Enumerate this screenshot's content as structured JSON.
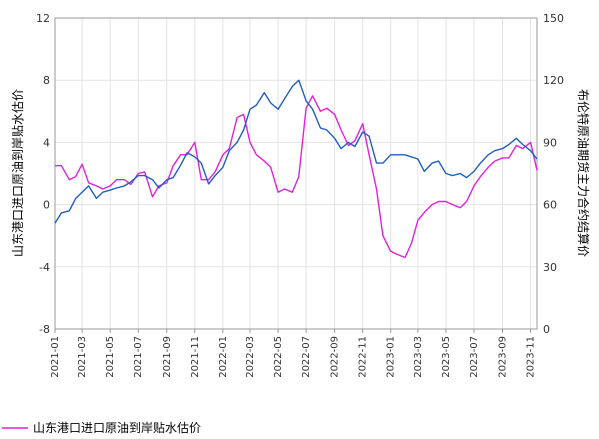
{
  "chart_data": {
    "type": "line",
    "title": "",
    "xlabel": "",
    "ylabel": "山东港口进口原油到岸贴水估价",
    "y2label": "布伦特原油期货主力合约结算价",
    "xlim": [
      "2021-01",
      "2023-11"
    ],
    "ylim": [
      -8,
      12
    ],
    "y2lim": [
      0,
      150
    ],
    "x_ticks": [
      "2021-01",
      "2021-03",
      "2021-05",
      "2021-07",
      "2021-09",
      "2021-11",
      "2022-01",
      "2022-03",
      "2022-05",
      "2022-07",
      "2022-09",
      "2022-11",
      "2023-01",
      "2023-03",
      "2023-05",
      "2023-07",
      "2023-09",
      "2023-11"
    ],
    "y_ticks": [
      "-8",
      "-4",
      "0",
      "4",
      "8",
      "12"
    ],
    "y2_ticks": [
      "0",
      "30",
      "60",
      "90",
      "120",
      "150"
    ],
    "grid": true,
    "legend_position": "bottom-left",
    "colors": {
      "discount": "#e020e0",
      "brent": "#1f5fbf"
    },
    "series": [
      {
        "name": "山东港口进口原油到岸贴水估价",
        "axis": "left",
        "x": [
          "2021-01-01",
          "2021-01-15",
          "2021-02-01",
          "2021-02-15",
          "2021-03-01",
          "2021-03-15",
          "2021-04-01",
          "2021-04-15",
          "2021-05-01",
          "2021-05-15",
          "2021-06-01",
          "2021-06-15",
          "2021-07-01",
          "2021-07-15",
          "2021-08-01",
          "2021-08-15",
          "2021-09-01",
          "2021-09-15",
          "2021-10-01",
          "2021-10-15",
          "2021-11-01",
          "2021-11-15",
          "2021-12-01",
          "2021-12-15",
          "2022-01-01",
          "2022-01-15",
          "2022-02-01",
          "2022-02-15",
          "2022-03-01",
          "2022-03-15",
          "2022-04-01",
          "2022-04-15",
          "2022-05-01",
          "2022-05-15",
          "2022-06-01",
          "2022-06-15",
          "2022-07-01",
          "2022-07-15",
          "2022-08-01",
          "2022-08-15",
          "2022-09-01",
          "2022-09-15",
          "2022-10-01",
          "2022-10-15",
          "2022-11-01",
          "2022-11-15",
          "2022-12-01",
          "2022-12-15",
          "2023-01-01",
          "2023-01-15",
          "2023-02-01",
          "2023-02-15",
          "2023-03-01",
          "2023-03-15",
          "2023-04-01",
          "2023-04-15",
          "2023-05-01",
          "2023-05-15",
          "2023-06-01",
          "2023-06-15",
          "2023-07-01",
          "2023-07-15",
          "2023-08-01",
          "2023-08-15",
          "2023-09-01",
          "2023-09-15",
          "2023-10-01",
          "2023-10-15",
          "2023-11-01",
          "2023-11-15"
        ],
        "values": [
          2.5,
          2.5,
          1.6,
          1.8,
          2.6,
          1.4,
          1.2,
          1.0,
          1.2,
          1.6,
          1.6,
          1.3,
          2.0,
          2.1,
          0.5,
          1.2,
          1.4,
          2.5,
          3.2,
          3.2,
          4.0,
          1.6,
          1.6,
          2.1,
          3.2,
          3.6,
          5.6,
          5.8,
          4.0,
          3.2,
          2.8,
          2.4,
          0.8,
          1.0,
          0.8,
          1.8,
          6.2,
          7.0,
          6.0,
          6.2,
          5.8,
          4.8,
          3.8,
          4.1,
          5.2,
          3.2,
          1.0,
          -2.0,
          -3.0,
          -3.2,
          -3.4,
          -2.5,
          -1.0,
          -0.5,
          0.0,
          0.2,
          0.2,
          0.0,
          -0.2,
          0.2,
          1.2,
          1.8,
          2.4,
          2.8,
          3.0,
          3.0,
          3.8,
          3.6,
          4.0,
          2.2
        ]
      },
      {
        "name": "布伦特原油期货主力合约结算价",
        "axis": "right",
        "x": [
          "2021-01-01",
          "2021-01-15",
          "2021-02-01",
          "2021-02-15",
          "2021-03-01",
          "2021-03-15",
          "2021-04-01",
          "2021-04-15",
          "2021-05-01",
          "2021-05-15",
          "2021-06-01",
          "2021-06-15",
          "2021-07-01",
          "2021-07-15",
          "2021-08-01",
          "2021-08-15",
          "2021-09-01",
          "2021-09-15",
          "2021-10-01",
          "2021-10-15",
          "2021-11-01",
          "2021-11-15",
          "2021-12-01",
          "2021-12-15",
          "2022-01-01",
          "2022-01-15",
          "2022-02-01",
          "2022-02-15",
          "2022-03-01",
          "2022-03-15",
          "2022-04-01",
          "2022-04-15",
          "2022-05-01",
          "2022-05-15",
          "2022-06-01",
          "2022-06-15",
          "2022-07-01",
          "2022-07-15",
          "2022-08-01",
          "2022-08-15",
          "2022-09-01",
          "2022-09-15",
          "2022-10-01",
          "2022-10-15",
          "2022-11-01",
          "2022-11-15",
          "2022-12-01",
          "2022-12-15",
          "2023-01-01",
          "2023-01-15",
          "2023-02-01",
          "2023-02-15",
          "2023-03-01",
          "2023-03-15",
          "2023-04-01",
          "2023-04-15",
          "2023-05-01",
          "2023-05-15",
          "2023-06-01",
          "2023-06-15",
          "2023-07-01",
          "2023-07-15",
          "2023-08-01",
          "2023-08-15",
          "2023-09-01",
          "2023-09-15",
          "2023-10-01",
          "2023-10-15",
          "2023-11-01",
          "2023-11-15"
        ],
        "values": [
          51,
          56,
          57,
          63,
          66,
          69,
          63,
          66,
          67,
          68,
          69,
          71,
          74,
          74,
          72,
          68,
          72,
          73,
          79,
          85,
          83,
          80,
          70,
          74,
          78,
          86,
          90,
          96,
          106,
          108,
          114,
          109,
          106,
          111,
          117,
          120,
          110,
          106,
          97,
          96,
          92,
          87,
          90,
          88,
          95,
          93,
          80,
          80,
          84,
          84,
          84,
          83,
          82,
          76,
          80,
          81,
          75,
          74,
          75,
          73,
          76,
          80,
          84,
          86,
          87,
          89,
          92,
          89,
          86,
          82
        ]
      }
    ]
  }
}
